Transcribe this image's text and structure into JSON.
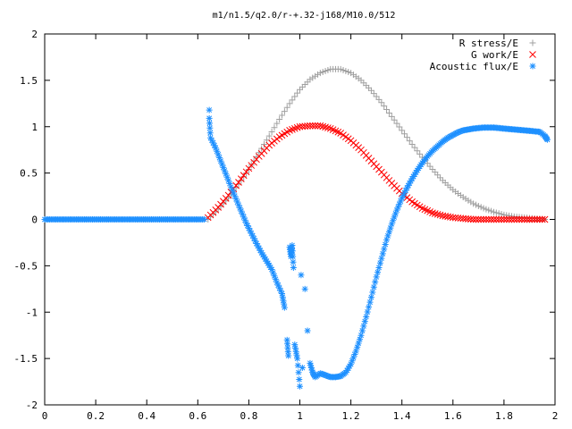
{
  "chart_data": {
    "type": "scatter",
    "title": "m1/n1.5/q2.0/r-+.32-j168/M10.0/512",
    "xlabel": "",
    "ylabel": "",
    "xlim": [
      0,
      2
    ],
    "ylim": [
      -2,
      2
    ],
    "xticks": [
      0,
      0.2,
      0.4,
      0.6,
      0.8,
      1,
      1.2,
      1.4,
      1.6,
      1.8,
      2
    ],
    "xtick_labels": [
      "0",
      "0.2",
      "0.4",
      "0.6",
      "0.8",
      "1",
      "1.2",
      "1.4",
      "1.6",
      "1.8",
      "2"
    ],
    "yticks": [
      -2,
      -1.5,
      -1,
      -0.5,
      0,
      0.5,
      1,
      1.5,
      2
    ],
    "ytick_labels": [
      "-2",
      "-1.5",
      "-1",
      "-0.5",
      "0",
      "0.5",
      "1",
      "1.5",
      "2"
    ],
    "grid": false,
    "legend_position": "top-right",
    "series": [
      {
        "name": "R stress/E",
        "marker": "plus",
        "color": "#a0a0a0",
        "x": [
          0.64,
          0.68,
          0.72,
          0.76,
          0.8,
          0.84,
          0.88,
          0.92,
          0.96,
          1.0,
          1.04,
          1.08,
          1.12,
          1.16,
          1.2,
          1.24,
          1.28,
          1.32,
          1.36,
          1.4,
          1.44,
          1.48,
          1.52,
          1.56,
          1.6,
          1.64,
          1.68,
          1.72,
          1.76,
          1.8,
          1.84,
          1.88,
          1.92,
          1.96
        ],
        "y": [
          0.0,
          0.11,
          0.23,
          0.38,
          0.54,
          0.72,
          0.9,
          1.08,
          1.25,
          1.4,
          1.51,
          1.58,
          1.62,
          1.62,
          1.58,
          1.5,
          1.39,
          1.26,
          1.11,
          0.96,
          0.81,
          0.67,
          0.54,
          0.42,
          0.32,
          0.24,
          0.17,
          0.12,
          0.08,
          0.05,
          0.03,
          0.02,
          0.01,
          0.0
        ]
      },
      {
        "name": "G work/E",
        "marker": "cross",
        "color": "#ff0000",
        "x": [
          0.64,
          0.68,
          0.72,
          0.76,
          0.8,
          0.84,
          0.88,
          0.92,
          0.96,
          1.0,
          1.04,
          1.08,
          1.12,
          1.16,
          1.2,
          1.24,
          1.28,
          1.32,
          1.36,
          1.4,
          1.44,
          1.48,
          1.52,
          1.56,
          1.6,
          1.64,
          1.68,
          1.72,
          1.76,
          1.8,
          1.84,
          1.88,
          1.92,
          1.96
        ],
        "y": [
          0.02,
          0.13,
          0.26,
          0.4,
          0.55,
          0.68,
          0.8,
          0.89,
          0.96,
          1.0,
          1.01,
          1.01,
          0.98,
          0.93,
          0.85,
          0.75,
          0.63,
          0.51,
          0.39,
          0.28,
          0.19,
          0.12,
          0.07,
          0.04,
          0.02,
          0.01,
          0.0,
          0.0,
          0.0,
          0.0,
          0.0,
          0.0,
          0.0,
          0.0
        ]
      },
      {
        "name": "Acoustic flux/E",
        "marker": "star",
        "color": "#1e90ff",
        "x": [
          0.0,
          0.025,
          0.05,
          0.075,
          0.1,
          0.125,
          0.15,
          0.175,
          0.2,
          0.225,
          0.25,
          0.275,
          0.3,
          0.325,
          0.35,
          0.375,
          0.4,
          0.425,
          0.45,
          0.475,
          0.5,
          0.525,
          0.55,
          0.575,
          0.6,
          0.625,
          0.645,
          0.645,
          0.65,
          0.67,
          0.69,
          0.71,
          0.73,
          0.75,
          0.77,
          0.79,
          0.81,
          0.83,
          0.85,
          0.87,
          0.89,
          0.91,
          0.93,
          0.94,
          0.95,
          0.955,
          0.96,
          0.965,
          0.97,
          0.975,
          0.98,
          0.99,
          1.0,
          1.005,
          1.01,
          1.02,
          1.03,
          1.04,
          1.05,
          1.06,
          1.08,
          1.1,
          1.12,
          1.14,
          1.16,
          1.18,
          1.2,
          1.22,
          1.24,
          1.26,
          1.28,
          1.3,
          1.32,
          1.34,
          1.36,
          1.38,
          1.4,
          1.42,
          1.44,
          1.46,
          1.48,
          1.5,
          1.52,
          1.54,
          1.56,
          1.58,
          1.6,
          1.62,
          1.64,
          1.66,
          1.68,
          1.7,
          1.72,
          1.74,
          1.76,
          1.78,
          1.8,
          1.82,
          1.84,
          1.86,
          1.88,
          1.9,
          1.92,
          1.94,
          1.96,
          1.97
        ],
        "y": [
          0,
          0,
          0,
          0,
          0,
          0,
          0,
          0,
          0,
          0,
          0,
          0,
          0,
          0,
          0,
          0,
          0,
          0,
          0,
          0,
          0,
          0,
          0,
          0,
          0,
          0,
          1.18,
          1.09,
          0.88,
          0.77,
          0.63,
          0.49,
          0.35,
          0.22,
          0.09,
          -0.04,
          -0.15,
          -0.26,
          -0.36,
          -0.45,
          -0.54,
          -0.68,
          -0.8,
          -0.95,
          -1.3,
          -1.47,
          -0.3,
          -0.4,
          -0.28,
          -0.52,
          -1.35,
          -1.5,
          -1.8,
          -0.6,
          -1.6,
          -0.75,
          -1.2,
          -1.55,
          -1.65,
          -1.7,
          -1.66,
          -1.68,
          -1.7,
          -1.7,
          -1.69,
          -1.65,
          -1.56,
          -1.42,
          -1.25,
          -1.05,
          -0.84,
          -0.62,
          -0.42,
          -0.22,
          -0.05,
          0.1,
          0.23,
          0.34,
          0.44,
          0.53,
          0.61,
          0.68,
          0.74,
          0.79,
          0.84,
          0.88,
          0.91,
          0.94,
          0.96,
          0.97,
          0.98,
          0.985,
          0.99,
          0.99,
          0.99,
          0.985,
          0.98,
          0.975,
          0.97,
          0.965,
          0.96,
          0.955,
          0.95,
          0.945,
          0.9,
          0.86
        ]
      }
    ]
  }
}
